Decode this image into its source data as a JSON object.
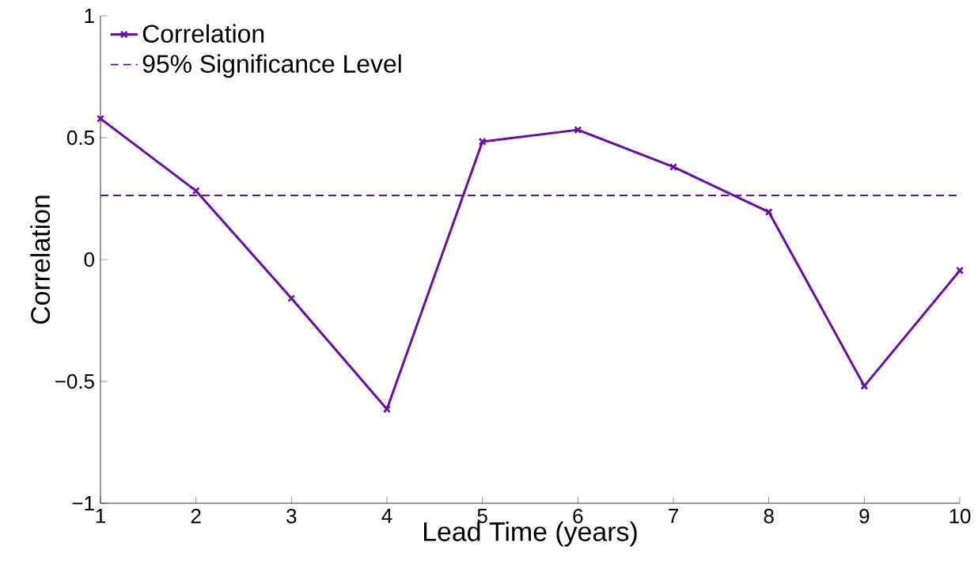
{
  "chart_data": {
    "type": "line",
    "xlabel": "Lead Time (years)",
    "ylabel": "Correlation",
    "x": [
      1,
      2,
      3,
      4,
      5,
      6,
      7,
      8,
      9,
      10
    ],
    "series": [
      {
        "name": "Correlation",
        "color": "#6a0aa8",
        "values": [
          0.578,
          0.282,
          -0.159,
          -0.614,
          0.484,
          0.532,
          0.38,
          0.195,
          -0.519,
          -0.045
        ]
      }
    ],
    "ref_lines": [
      {
        "axis": "y",
        "value": 0.263,
        "label": "95% Significance Level",
        "color": "#6a0aa8",
        "line_style": "dashed"
      }
    ],
    "xlim": [
      1,
      10
    ],
    "ylim": [
      -1,
      1
    ],
    "xticks": [
      1,
      2,
      3,
      4,
      5,
      6,
      7,
      8,
      9,
      10
    ],
    "yticks": [
      {
        "value": -1,
        "label": "−1"
      },
      {
        "value": -0.5,
        "label": "−0.5"
      },
      0,
      0.5,
      1
    ],
    "marker": "cross",
    "line_style": "solid",
    "grid": false,
    "legend": "top left"
  }
}
